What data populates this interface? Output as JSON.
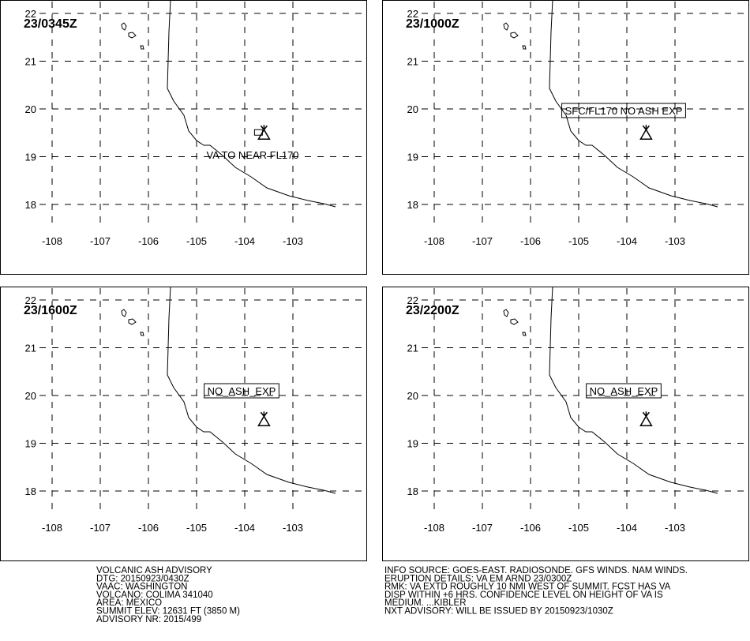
{
  "panels": [
    {
      "time": "23/0345Z",
      "label": "VA TO NEAR FL170",
      "boxed": false
    },
    {
      "time": "23/1000Z",
      "label": "SFC/FL170 NO ASH EXP",
      "boxed": true
    },
    {
      "time": "23/1600Z",
      "label": "NO_ASH_EXP",
      "boxed": true
    },
    {
      "time": "23/2200Z",
      "label": "NO_ASH_EXP",
      "boxed": true
    }
  ],
  "lons": [
    -108,
    -107,
    -106,
    -105,
    -104,
    -103
  ],
  "lats": [
    22,
    21,
    20,
    19,
    18
  ],
  "volcano": {
    "lon": -103.6,
    "lat": 19.5
  },
  "advisory_left": [
    "VOLCANIC ASH ADVISORY",
    "DTG: 20150923/0430Z",
    "VAAC: WASHINGTON",
    "VOLCANO: COLIMA 341040",
    "AREA: MEXICO",
    "SUMMIT ELEV: 12631 FT (3850 M)",
    "ADVISORY NR: 2015/499"
  ],
  "advisory_right": [
    "INFO SOURCE: GOES-EAST. RADIOSONDE. GFS WINDS. NAM WINDS.",
    "ERUPTION DETAILS: VA EM ARND 23/0300Z",
    "RMK: VA EXTD ROUGHLY 10 NMI WEST OF SUMMIT. FCST HAS VA",
    "DISP WITHIN +6 HRS. CONFIDENCE LEVEL ON HEIGHT OF VA IS",
    "MEDIUM. ...KIBLER",
    "NXT ADVISORY: WILL BE ISSUED BY 20150923/1030Z"
  ]
}
